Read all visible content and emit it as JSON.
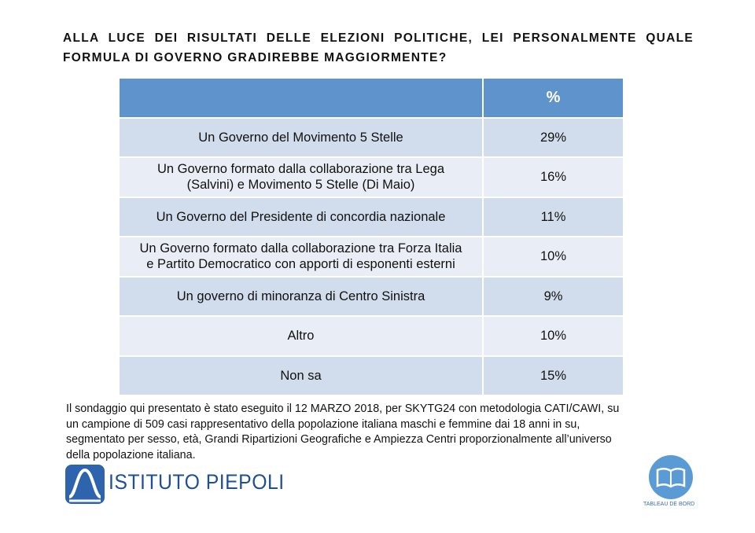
{
  "title": "ALLA LUCE DEI RISULTATI DELLE ELEZIONI POLITICHE, LEI PERSONALMENTE QUALE FORMULA DI GOVERNO GRADIREBBE MAGGIORMENTE?",
  "table": {
    "header": [
      "",
      "%"
    ],
    "rows": [
      [
        "Un Governo del Movimento 5 Stelle",
        "29%"
      ],
      [
        "Un Governo formato dalla collaborazione tra Lega\n(Salvini) e Movimento 5 Stelle (Di Maio)",
        "16%"
      ],
      [
        "Un Governo del Presidente di concordia nazionale",
        "11%"
      ],
      [
        "Un Governo formato dalla collaborazione tra Forza Italia\ne Partito Democratico con apporti di esponenti esterni",
        "10%"
      ],
      [
        "Un governo di minoranza di Centro Sinistra",
        "9%"
      ],
      [
        "Altro",
        "10%"
      ],
      [
        "Non sa",
        "15%"
      ]
    ]
  },
  "footnote": "Il sondaggio qui presentato è stato eseguito il 12 MARZO 2018, per SKYTG24 con metodologia CATI/CAWI, su\nun campione di 509 casi rappresentativo della popolazione italiana maschi e femmine dai 18 anni in su,\nsegmentato per sesso, età, Grandi Ripartizioni Geografiche e Ampiezza Centri proporzionalmente all’universo\ndella popolazione italiana.",
  "logo_left": "ISTITUTO PIEPOLI",
  "logo_right": "TABLEAU DE BORD"
}
